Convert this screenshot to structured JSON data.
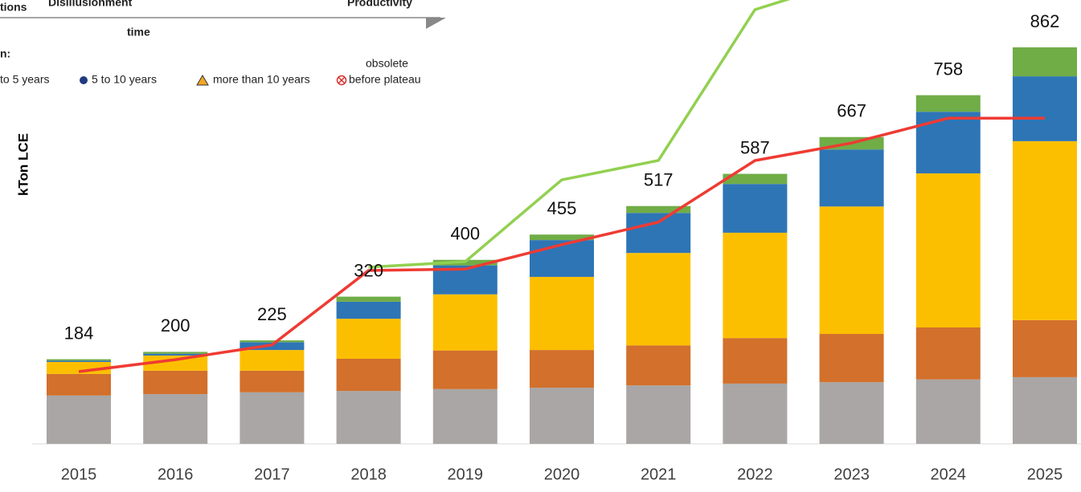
{
  "chart_data": {
    "type": "stacked_bar",
    "y_label": "kTon LCE",
    "categories": [
      "2015",
      "2016",
      "2017",
      "2018",
      "2019",
      "2020",
      "2021",
      "2022",
      "2023",
      "2024",
      "2025"
    ],
    "series": [
      {
        "color": "#a9a6a5",
        "values": [
          105,
          108,
          112,
          115,
          119,
          122,
          127,
          131,
          134,
          140,
          145
        ]
      },
      {
        "color": "#d2702c",
        "values": [
          47,
          51,
          47,
          70,
          84,
          82,
          87,
          99,
          105,
          113,
          124
        ]
      },
      {
        "color": "#fcbf00",
        "values": [
          26,
          33,
          45,
          87,
          122,
          159,
          201,
          229,
          277,
          335,
          389
        ]
      },
      {
        "color": "#2e75b6",
        "values": [
          3,
          4,
          17,
          37,
          63,
          80,
          87,
          106,
          124,
          134,
          141
        ]
      },
      {
        "color": "#70ad47",
        "values": [
          3,
          4,
          4,
          11,
          12,
          12,
          15,
          22,
          27,
          36,
          63
        ]
      }
    ],
    "totals": [
      184,
      200,
      225,
      320,
      400,
      455,
      517,
      587,
      667,
      758,
      862
    ],
    "lines": [
      {
        "color": "#ee3b33",
        "values": [
          157,
          183,
          215,
          377,
          380,
          433,
          482,
          616,
          654,
          708,
          708
        ]
      },
      {
        "color": "#92d050",
        "values": [
          null,
          null,
          null,
          384,
          396,
          574,
          616,
          944,
          1010,
          null,
          null
        ]
      }
    ]
  },
  "overlay": {
    "top_left": "tions",
    "top_mid": "Disillusionment",
    "top_right": "Productivity",
    "axis": "time",
    "legend_title": "n:",
    "obsolete": "obsolete",
    "legend": [
      "to 5 years",
      "5 to 10 years",
      "more than 10 years",
      "before plateau"
    ]
  }
}
